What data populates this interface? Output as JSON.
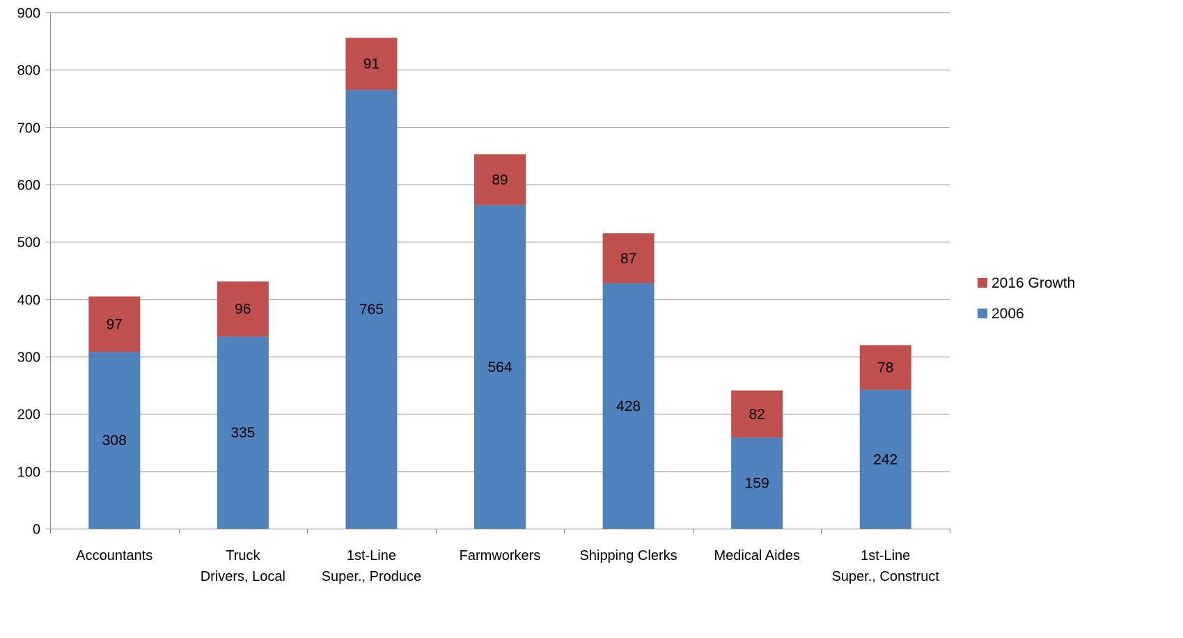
{
  "chart_data": {
    "type": "bar",
    "stacked": true,
    "title": "",
    "xlabel": "",
    "ylabel": "",
    "ylim": [
      0,
      900
    ],
    "yticks": [
      0,
      100,
      200,
      300,
      400,
      500,
      600,
      700,
      800,
      900
    ],
    "grid": true,
    "legend_position": "right",
    "categories": [
      [
        "Accountants"
      ],
      [
        "Truck",
        "Drivers, Local"
      ],
      [
        "1st-Line",
        "Super., Produce"
      ],
      [
        "Farmworkers"
      ],
      [
        "Shipping Clerks"
      ],
      [
        "Medical Aides"
      ],
      [
        "1st-Line",
        "Super., Construct"
      ]
    ],
    "series": [
      {
        "name": "2006",
        "color": "#4F81BD",
        "values": [
          308,
          335,
          765,
          564,
          428,
          159,
          242
        ]
      },
      {
        "name": "2016 Growth",
        "color": "#C0504D",
        "values": [
          97,
          96,
          91,
          89,
          87,
          82,
          78
        ]
      }
    ],
    "legend_order": [
      1,
      0
    ]
  }
}
